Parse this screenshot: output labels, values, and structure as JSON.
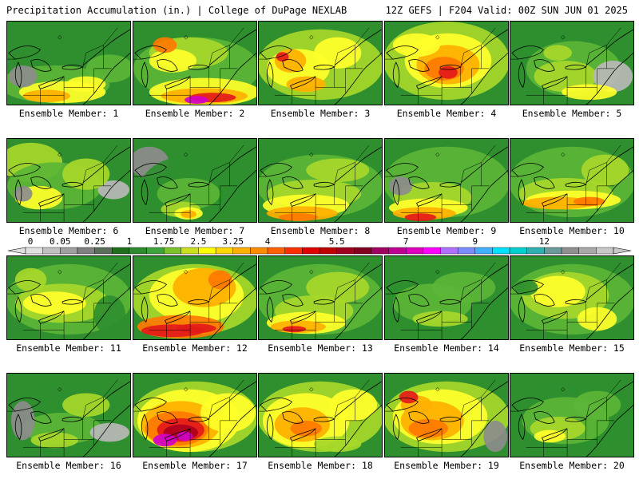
{
  "header": {
    "left": "Precipitation Accumulation (in.) | College of DuPage NEXLAB",
    "right": "12Z GEFS | F204 Valid: 00Z SUN JUN 01 2025"
  },
  "panels": [
    {
      "label": "Ensemble Member: 1"
    },
    {
      "label": "Ensemble Member: 2"
    },
    {
      "label": "Ensemble Member: 3"
    },
    {
      "label": "Ensemble Member: 4"
    },
    {
      "label": "Ensemble Member: 5"
    },
    {
      "label": "Ensemble Member: 6"
    },
    {
      "label": "Ensemble Member: 7"
    },
    {
      "label": "Ensemble Member: 8"
    },
    {
      "label": "Ensemble Member: 9"
    },
    {
      "label": "Ensemble Member: 10"
    },
    {
      "label": "Ensemble Member: 11"
    },
    {
      "label": "Ensemble Member: 12"
    },
    {
      "label": "Ensemble Member: 13"
    },
    {
      "label": "Ensemble Member: 14"
    },
    {
      "label": "Ensemble Member: 15"
    },
    {
      "label": "Ensemble Member: 16"
    },
    {
      "label": "Ensemble Member: 17"
    },
    {
      "label": "Ensemble Member: 18"
    },
    {
      "label": "Ensemble Member: 19"
    },
    {
      "label": "Ensemble Member: 20"
    }
  ],
  "colorbar": {
    "tick_labels": [
      "0",
      "0.05",
      "0.25",
      "1",
      "1.75",
      "2.5",
      "3.25",
      "4",
      "5.5",
      "7",
      "9",
      "12"
    ],
    "colors": [
      "#e0e0e0",
      "#c0c0c0",
      "#a0a0a0",
      "#808080",
      "#5a6e5a",
      "#1f6f1f",
      "#2d8a2d",
      "#3ea53e",
      "#7cc22a",
      "#c8e01e",
      "#ffff00",
      "#ffd700",
      "#ffb000",
      "#ff8c00",
      "#ff6000",
      "#ff3000",
      "#e00000",
      "#c00000",
      "#a00020",
      "#800020",
      "#a00060",
      "#c00090",
      "#e000c0",
      "#ff00ff",
      "#b070ff",
      "#7a8cff",
      "#40b0ff",
      "#00e0ff",
      "#00d0d0",
      "#30b0b0",
      "#6a9a9a",
      "#909090",
      "#a8a8a8",
      "#c8c8c8"
    ]
  }
}
